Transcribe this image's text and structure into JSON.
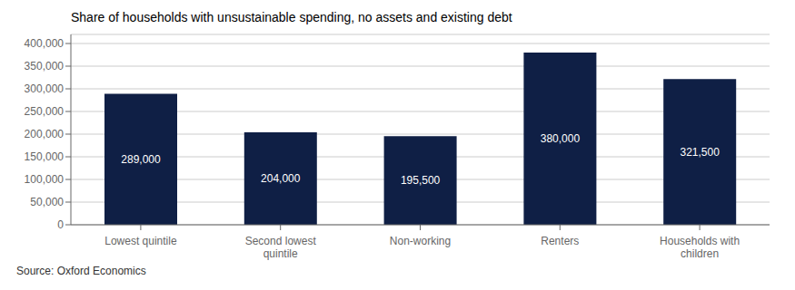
{
  "chart_data": {
    "type": "bar",
    "title": "Share of households with unsustainable spending, no assets and existing debt",
    "categories": [
      "Lowest quintile",
      "Second lowest\nquintile",
      "Non-working",
      "Renters",
      "Households with\nchildren"
    ],
    "values": [
      289000,
      204000,
      195500,
      380000,
      321500
    ],
    "value_labels": [
      "289,000",
      "204,000",
      "195,500",
      "380,000",
      "321,500"
    ],
    "data_labels": true,
    "color": "#0f1f45",
    "ylim": [
      0,
      420000
    ],
    "yticks": [
      0,
      {
        "value": 50000,
        "label": "50,000"
      },
      {
        "value": 100000,
        "label": "100,000"
      },
      {
        "value": 150000,
        "label": "150,000"
      },
      {
        "value": 200000,
        "label": "200,000"
      },
      {
        "value": 250000,
        "label": "250,000"
      },
      {
        "value": 300000,
        "label": "300,000"
      },
      {
        "value": 350000,
        "label": "350,000"
      },
      {
        "value": 400000,
        "label": "400,000"
      }
    ],
    "grid": true,
    "annotations": [
      "Source: Oxford Economics"
    ]
  }
}
